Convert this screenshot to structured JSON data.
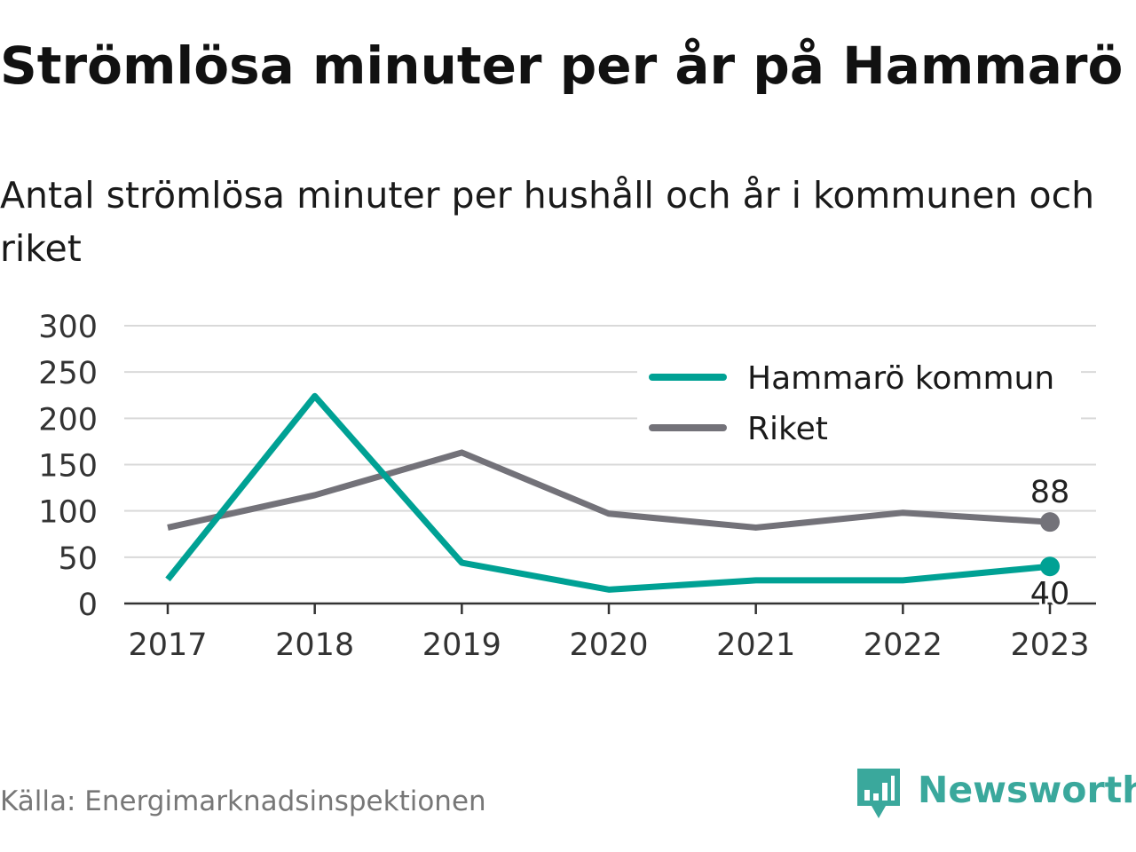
{
  "title": "Strömlösa minuter per år på Hammarö",
  "subtitle": "Antal strömlösa minuter per hushåll och år i kommunen och riket",
  "source": "Källa: Energimarknadsinspektionen",
  "brand": "Newsworthy",
  "colors": {
    "hammaro": "#00a194",
    "riket": "#737279",
    "grid": "#d9d9d9",
    "axis": "#333333",
    "brand": "#3aa89c"
  },
  "chart_data": {
    "type": "line",
    "x": [
      "2017",
      "2018",
      "2019",
      "2020",
      "2021",
      "2022",
      "2023"
    ],
    "yticks": [
      "0",
      "50",
      "100",
      "150",
      "200",
      "250",
      "300"
    ],
    "ylim": [
      0,
      300
    ],
    "grid": true,
    "legend_position": "top-right",
    "series": [
      {
        "name": "Hammarö kommun",
        "color": "#00a194",
        "values": [
          26,
          224,
          44,
          15,
          25,
          25,
          40
        ],
        "end_label": "40"
      },
      {
        "name": "Riket",
        "color": "#737279",
        "values": [
          82,
          117,
          163,
          97,
          82,
          98,
          88
        ],
        "end_label": "88"
      }
    ]
  }
}
